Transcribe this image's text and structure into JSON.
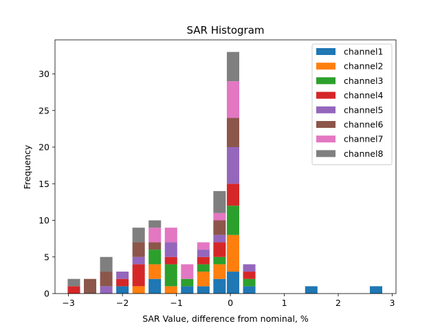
{
  "chart_data": {
    "type": "bar",
    "stacked": true,
    "title": "SAR Histogram",
    "xlabel": "SAR Value, difference from nominal, %",
    "ylabel": "Frequency",
    "xlim": [
      -3.25,
      3.07
    ],
    "ylim": [
      0,
      34.65
    ],
    "xticks": [
      -3,
      -2,
      -1,
      0,
      1,
      2,
      3
    ],
    "yticks": [
      0,
      5,
      10,
      15,
      20,
      25,
      30
    ],
    "grid": false,
    "legend_position": "top-right",
    "bar_width": 0.23,
    "x": [
      -2.9,
      -2.6,
      -2.3,
      -2.0,
      -1.7,
      -1.4,
      -1.1,
      -0.8,
      -0.5,
      -0.2,
      0.05,
      0.35,
      1.5,
      2.7
    ],
    "series": [
      {
        "name": "channel1",
        "color": "#1f77b4",
        "values": [
          0,
          0,
          0,
          1,
          0,
          2,
          0,
          1,
          1,
          2,
          3,
          1,
          1,
          1
        ]
      },
      {
        "name": "channel2",
        "color": "#ff7f0e",
        "values": [
          0,
          0,
          0,
          0,
          1,
          2,
          1,
          0,
          2,
          2,
          5,
          0,
          0,
          0
        ]
      },
      {
        "name": "channel3",
        "color": "#2ca02c",
        "values": [
          0,
          0,
          0,
          0,
          0,
          2,
          3,
          1,
          1,
          1,
          4,
          1,
          0,
          0
        ]
      },
      {
        "name": "channel4",
        "color": "#d62728",
        "values": [
          1,
          0,
          0,
          1,
          3,
          0,
          1,
          0,
          1,
          2,
          3,
          1,
          0,
          0
        ]
      },
      {
        "name": "channel5",
        "color": "#9467bd",
        "values": [
          0,
          0,
          1,
          1,
          1,
          0,
          2,
          0,
          1,
          1,
          5,
          1,
          0,
          0
        ]
      },
      {
        "name": "channel6",
        "color": "#8c564b",
        "values": [
          0,
          2,
          2,
          0,
          2,
          1,
          0,
          0,
          0,
          2,
          4,
          0,
          0,
          0
        ]
      },
      {
        "name": "channel7",
        "color": "#e377c2",
        "values": [
          0,
          0,
          0,
          0,
          0,
          2,
          2,
          2,
          1,
          1,
          5,
          0,
          0,
          0
        ]
      },
      {
        "name": "channel8",
        "color": "#7f7f7f",
        "values": [
          1,
          0,
          2,
          0,
          2,
          1,
          0,
          0,
          0,
          3,
          4,
          0,
          0,
          0
        ]
      }
    ]
  }
}
